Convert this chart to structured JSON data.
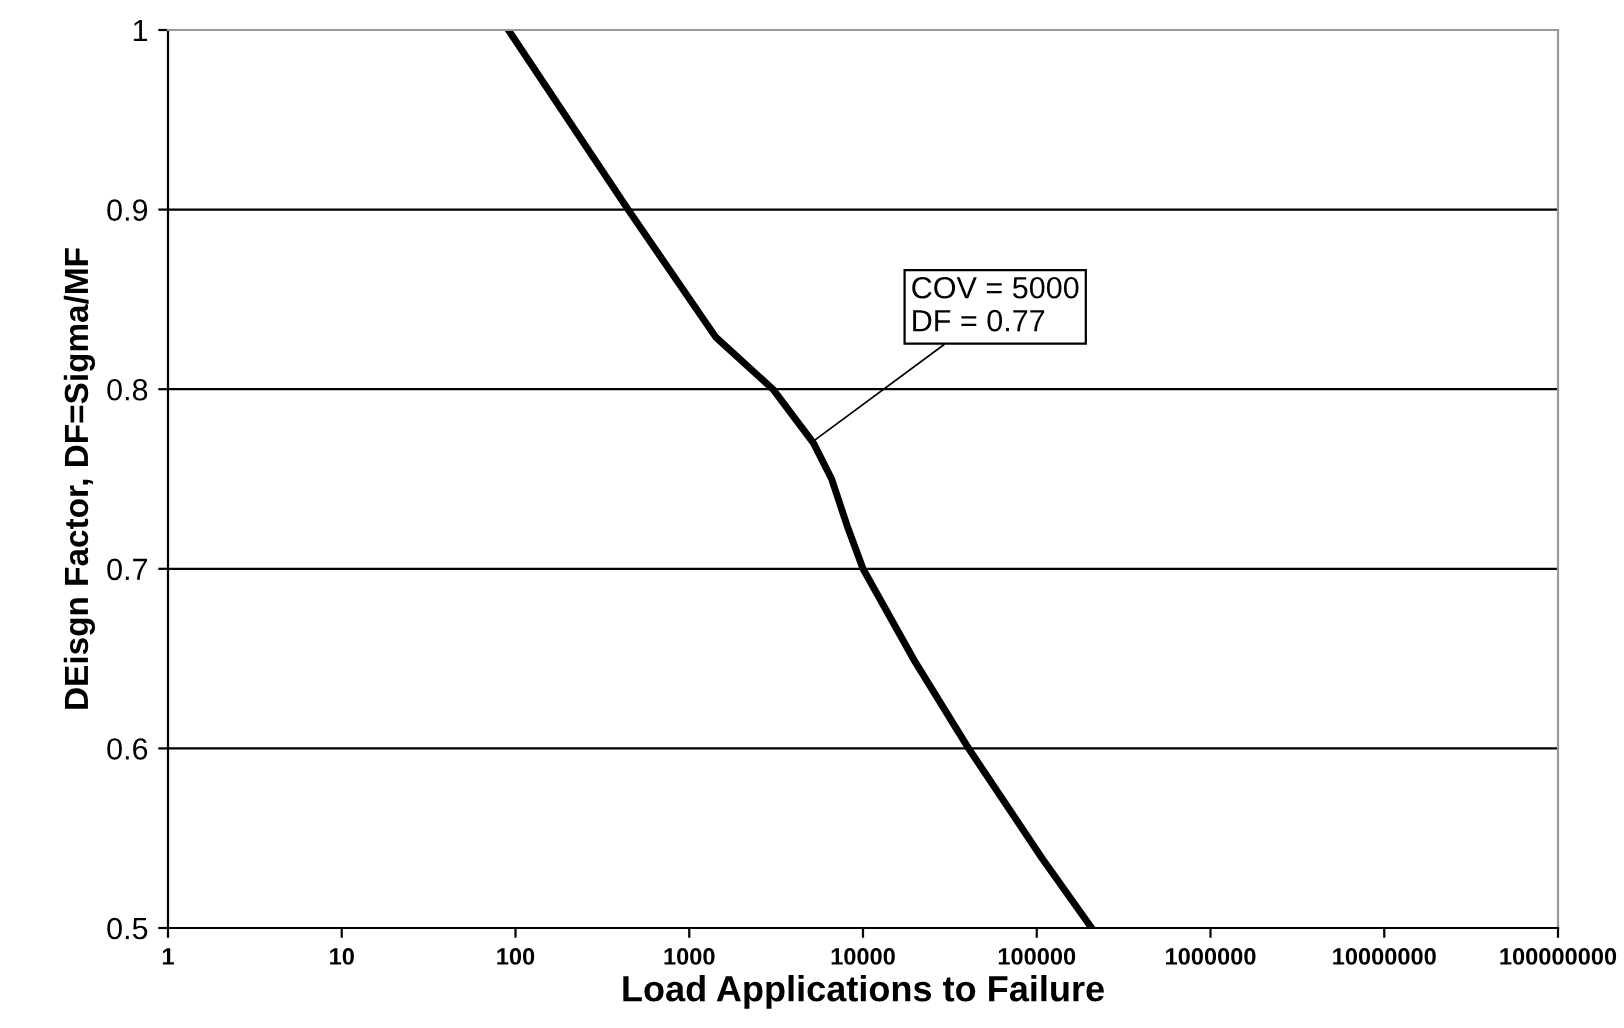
{
  "chart_data": {
    "type": "line",
    "xlabel": "Load Applications to Failure",
    "ylabel": "DEisgn Factor, DF=Sigma/MF",
    "x": [
      91,
      445,
      1420,
      3030,
      5190,
      6600,
      8100,
      10000,
      20000,
      40500,
      107000,
      207000
    ],
    "series": [
      {
        "color": "#000000",
        "values": [
          1.0,
          0.9,
          0.829,
          0.8,
          0.77,
          0.75,
          0.724,
          0.7,
          0.648,
          0.6,
          0.539,
          0.5
        ]
      }
    ],
    "log": "x",
    "xlim": [
      1,
      100000000
    ],
    "xticks": [
      1,
      10,
      100,
      1000,
      10000,
      100000,
      1000000,
      10000000,
      100000000
    ],
    "ylim": [
      0.5,
      1
    ],
    "yticks": [
      0.5,
      0.6,
      0.7,
      0.8,
      0.9,
      1
    ],
    "grid": "y",
    "line_style": "solid",
    "annotations": [
      {
        "text": "COV = 5000\nDF = 0.77",
        "x": 5000,
        "y": 0.77
      }
    ]
  }
}
